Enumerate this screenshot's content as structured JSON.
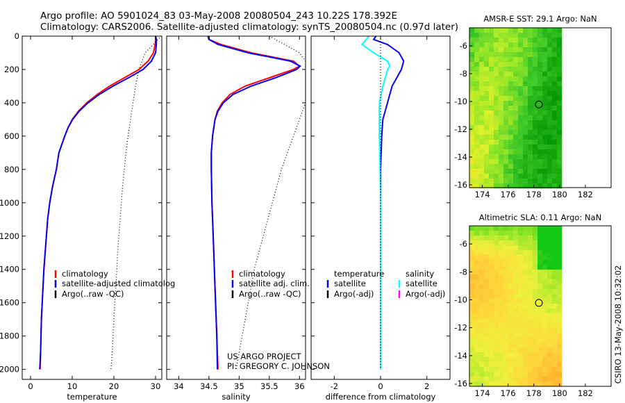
{
  "header": {
    "line1": "Argo profile: AO 5901024_83 03-May-2008 20080504_243 10.22S 178.392E",
    "line2": "Climatology: CARS2006. Satellite-adjusted climatology: synTS_20080504.nc (0.97d later)"
  },
  "side_note": "CSIRO 13-May-2008 10:32:02",
  "credit": {
    "line1": "US ARGO PROJECT",
    "line2": "PI: GREGORY C. JOHNSON"
  },
  "colors": {
    "climatology": "#ff0000",
    "satellite": "#0000ff",
    "argo": "#000000",
    "sat_diff_salinity": "#00ffff",
    "argo_salinity_legend": "#ff00ff"
  },
  "chart_data": [
    {
      "type": "line",
      "id": "temperature",
      "xlabel": "temperature",
      "ylabel": "",
      "xlim": [
        -2,
        31.5
      ],
      "ylim": [
        2060,
        0
      ],
      "xticks": [
        "0",
        "10",
        "20",
        "30"
      ],
      "yticks": [
        "0",
        "200",
        "400",
        "600",
        "800",
        "1000",
        "1200",
        "1400",
        "1600",
        "1800",
        "2000"
      ],
      "legend": [
        "climatology",
        "satellite-adjusted climatolog",
        "Argo(..raw -QC)"
      ],
      "series": [
        {
          "name": "climatology",
          "color": "#ff0000",
          "points": [
            [
              30,
              0
            ],
            [
              30,
              20
            ],
            [
              29.9,
              50
            ],
            [
              29.5,
              100
            ],
            [
              28.2,
              150
            ],
            [
              26,
              200
            ],
            [
              22.5,
              250
            ],
            [
              19,
              300
            ],
            [
              16,
              350
            ],
            [
              13.5,
              400
            ],
            [
              11.5,
              450
            ],
            [
              10,
              500
            ],
            [
              9,
              550
            ],
            [
              8.2,
              600
            ],
            [
              7.5,
              650
            ],
            [
              6.8,
              700
            ],
            [
              6.2,
              800
            ],
            [
              5.3,
              900
            ],
            [
              4.6,
              1000
            ],
            [
              4.1,
              1100
            ],
            [
              3.8,
              1200
            ],
            [
              3.5,
              1300
            ],
            [
              3.2,
              1400
            ],
            [
              3,
              1500
            ],
            [
              2.8,
              1600
            ],
            [
              2.6,
              1700
            ],
            [
              2.5,
              1800
            ],
            [
              2.4,
              1900
            ],
            [
              2.3,
              2000
            ]
          ]
        },
        {
          "name": "satellite-adjusted climatolog",
          "color": "#0000ff",
          "points": [
            [
              30,
              0
            ],
            [
              30.2,
              20
            ],
            [
              30.2,
              50
            ],
            [
              30,
              100
            ],
            [
              29,
              150
            ],
            [
              27,
              200
            ],
            [
              23.5,
              250
            ],
            [
              19.8,
              300
            ],
            [
              16.5,
              350
            ],
            [
              13.8,
              400
            ],
            [
              11.7,
              450
            ],
            [
              10.1,
              500
            ],
            [
              9,
              550
            ],
            [
              8.2,
              600
            ],
            [
              7.5,
              650
            ],
            [
              6.8,
              700
            ],
            [
              6.2,
              800
            ],
            [
              5.3,
              900
            ],
            [
              4.6,
              1000
            ],
            [
              4.1,
              1100
            ],
            [
              3.8,
              1200
            ],
            [
              3.5,
              1300
            ],
            [
              3.2,
              1400
            ],
            [
              3,
              1500
            ],
            [
              2.8,
              1600
            ],
            [
              2.6,
              1700
            ],
            [
              2.5,
              1800
            ],
            [
              2.4,
              1900
            ],
            [
              2.2,
              2000
            ]
          ]
        },
        {
          "name": "Argo(..raw -QC)",
          "color": "#000000",
          "dotted": true,
          "points": [
            [
              31.5,
              0
            ],
            [
              30.5,
              20
            ],
            [
              29.5,
              50
            ],
            [
              27.5,
              100
            ],
            [
              26,
              200
            ],
            [
              25.2,
              300
            ],
            [
              24.6,
              400
            ],
            [
              24,
              500
            ],
            [
              23.4,
              600
            ],
            [
              22.9,
              700
            ],
            [
              22.5,
              800
            ],
            [
              22.1,
              900
            ],
            [
              21.8,
              1000
            ],
            [
              21.5,
              1100
            ],
            [
              21.2,
              1200
            ],
            [
              20.9,
              1300
            ],
            [
              20.7,
              1400
            ],
            [
              20.5,
              1500
            ],
            [
              20.2,
              1600
            ],
            [
              20,
              1700
            ],
            [
              19.8,
              1800
            ],
            [
              19.6,
              1900
            ],
            [
              19.3,
              2000
            ]
          ]
        }
      ]
    },
    {
      "type": "line",
      "id": "salinity",
      "xlabel": "salinity",
      "ylabel": "",
      "xlim": [
        33.8,
        36.1
      ],
      "ylim": [
        2060,
        0
      ],
      "xticks": [
        "34",
        "34.5",
        "35",
        "35.5",
        "36"
      ],
      "legend": [
        "climatology",
        "satellite adj. clim.",
        "Argo(..raw -QC)"
      ],
      "series": [
        {
          "name": "climatology",
          "color": "#ff0000",
          "points": [
            [
              34.48,
              0
            ],
            [
              34.5,
              20
            ],
            [
              34.7,
              50
            ],
            [
              35.2,
              100
            ],
            [
              35.9,
              150
            ],
            [
              36,
              180
            ],
            [
              35.9,
              200
            ],
            [
              35.5,
              250
            ],
            [
              35.1,
              300
            ],
            [
              34.85,
              350
            ],
            [
              34.72,
              400
            ],
            [
              34.64,
              450
            ],
            [
              34.6,
              500
            ],
            [
              34.56,
              600
            ],
            [
              34.54,
              700
            ],
            [
              34.54,
              800
            ],
            [
              34.55,
              1000
            ],
            [
              34.57,
              1200
            ],
            [
              34.59,
              1400
            ],
            [
              34.61,
              1600
            ],
            [
              34.63,
              1800
            ],
            [
              34.65,
              2000
            ]
          ]
        },
        {
          "name": "satellite adj. clim.",
          "color": "#0000ff",
          "points": [
            [
              34.5,
              0
            ],
            [
              34.5,
              20
            ],
            [
              34.65,
              50
            ],
            [
              35.15,
              100
            ],
            [
              35.85,
              150
            ],
            [
              36.01,
              180
            ],
            [
              35.95,
              200
            ],
            [
              35.6,
              250
            ],
            [
              35.2,
              300
            ],
            [
              34.9,
              350
            ],
            [
              34.74,
              400
            ],
            [
              34.65,
              450
            ],
            [
              34.6,
              500
            ],
            [
              34.56,
              600
            ],
            [
              34.54,
              700
            ],
            [
              34.54,
              800
            ],
            [
              34.55,
              1000
            ],
            [
              34.57,
              1200
            ],
            [
              34.59,
              1400
            ],
            [
              34.61,
              1600
            ],
            [
              34.63,
              1800
            ],
            [
              34.64,
              2000
            ]
          ]
        },
        {
          "name": "Argo(..raw -QC)",
          "color": "#000000",
          "dotted": true,
          "points": [
            [
              35.5,
              0
            ],
            [
              36,
              100
            ],
            [
              36.1,
              150
            ],
            [
              36.1,
              400
            ],
            [
              35.9,
              600
            ],
            [
              35.7,
              800
            ],
            [
              35.55,
              1000
            ],
            [
              35.4,
              1200
            ],
            [
              35.25,
              1400
            ],
            [
              35.15,
              1600
            ],
            [
              35.05,
              1800
            ],
            [
              34.95,
              2000
            ]
          ]
        }
      ]
    },
    {
      "type": "line",
      "id": "difference",
      "xlabel": "difference from climatology",
      "ylabel": "",
      "xlim": [
        -3,
        3
      ],
      "ylim": [
        2060,
        0
      ],
      "xticks": [
        "-2",
        "0",
        "2"
      ],
      "legend": [
        "temperature",
        "satellite",
        "Argo(-adj)",
        "salinity",
        "satellite",
        "Argo(-adj)"
      ],
      "series": [
        {
          "name": "satellite",
          "color": "#0000ff",
          "points": [
            [
              -0.2,
              0
            ],
            [
              -0.3,
              20
            ],
            [
              0.3,
              50
            ],
            [
              0.8,
              100
            ],
            [
              1,
              150
            ],
            [
              0.9,
              200
            ],
            [
              0.7,
              250
            ],
            [
              0.5,
              300
            ],
            [
              0.4,
              350
            ],
            [
              0.3,
              400
            ],
            [
              0.2,
              450
            ],
            [
              0.1,
              500
            ],
            [
              0.05,
              600
            ],
            [
              0,
              800
            ],
            [
              0,
              1000
            ],
            [
              0,
              1500
            ],
            [
              0,
              2000
            ]
          ]
        },
        {
          "name": "satellite",
          "color": "#00ffff",
          "points": [
            [
              -0.5,
              0
            ],
            [
              -0.8,
              50
            ],
            [
              -0.3,
              100
            ],
            [
              0.3,
              150
            ],
            [
              0.4,
              180
            ],
            [
              0.3,
              200
            ],
            [
              0.2,
              250
            ],
            [
              0.1,
              300
            ],
            [
              -0.05,
              400
            ],
            [
              -0.05,
              500
            ],
            [
              -0.05,
              600
            ],
            [
              -0.02,
              800
            ],
            [
              0,
              1000
            ],
            [
              0,
              1500
            ],
            [
              0,
              2000
            ]
          ]
        },
        {
          "name": "Argo(-adj)",
          "color": "#000000",
          "dotted": true,
          "points": [
            [
              0,
              0
            ],
            [
              0,
              2000
            ]
          ]
        }
      ]
    },
    {
      "type": "heatmap",
      "id": "sst_map",
      "title": "AMSR-E SST: 29.1 Argo: NaN",
      "xticks": [
        "174",
        "176",
        "178",
        "180",
        "182"
      ],
      "yticks": [
        "-6",
        "-8",
        "-10",
        "-12",
        "-14",
        "-16"
      ],
      "xlim": [
        173,
        184
      ],
      "ylim": [
        -16.2,
        -4.7
      ],
      "data_xlim": [
        173,
        180
      ],
      "argo_position": [
        178.392,
        -10.22
      ]
    },
    {
      "type": "heatmap",
      "id": "sla_map",
      "title": "Altimetric SLA: 0.11 Argo: NaN",
      "xticks": [
        "174",
        "176",
        "178",
        "180",
        "182"
      ],
      "yticks": [
        "-6",
        "-8",
        "-10",
        "-12",
        "-14",
        "-16"
      ],
      "xlim": [
        173,
        184
      ],
      "ylim": [
        -16.2,
        -4.7
      ],
      "data_xlim": [
        173,
        180
      ],
      "argo_position": [
        178.392,
        -10.22
      ]
    }
  ]
}
